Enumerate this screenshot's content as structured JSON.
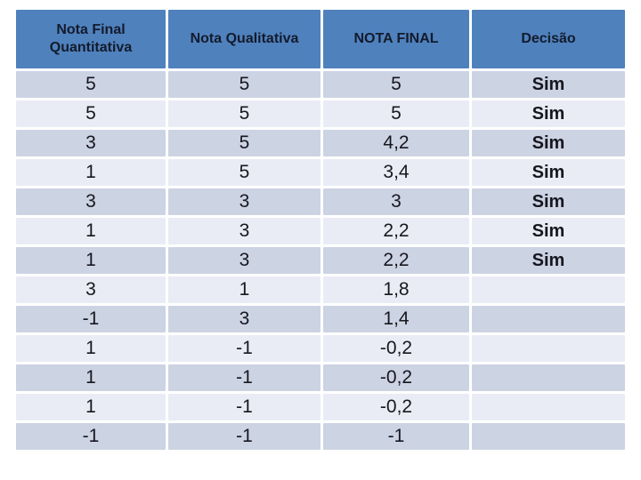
{
  "colors": {
    "header_bg": "#4f81bd",
    "header_text": "#131b2c",
    "row_dark": "#ccd3e3",
    "row_light": "#e9ecf4",
    "cell_text": "#17171f",
    "background": "#ffffff"
  },
  "table": {
    "headers": [
      "Nota Final Quantitativa",
      "Nota Qualitativa",
      "NOTA FINAL",
      "Decisão"
    ],
    "rows": [
      [
        "5",
        "5",
        "5",
        "Sim"
      ],
      [
        "5",
        "5",
        "5",
        "Sim"
      ],
      [
        "3",
        "5",
        "4,2",
        "Sim"
      ],
      [
        "1",
        "5",
        "3,4",
        "Sim"
      ],
      [
        "3",
        "3",
        "3",
        "Sim"
      ],
      [
        "1",
        "3",
        "2,2",
        "Sim"
      ],
      [
        "1",
        "3",
        "2,2",
        "Sim"
      ],
      [
        "3",
        "1",
        "1,8",
        ""
      ],
      [
        "-1",
        "3",
        "1,4",
        ""
      ],
      [
        "1",
        "-1",
        "-0,2",
        ""
      ],
      [
        "1",
        "-1",
        "-0,2",
        ""
      ],
      [
        "1",
        "-1",
        "-0,2",
        ""
      ],
      [
        "-1",
        "-1",
        "-1",
        ""
      ]
    ]
  }
}
